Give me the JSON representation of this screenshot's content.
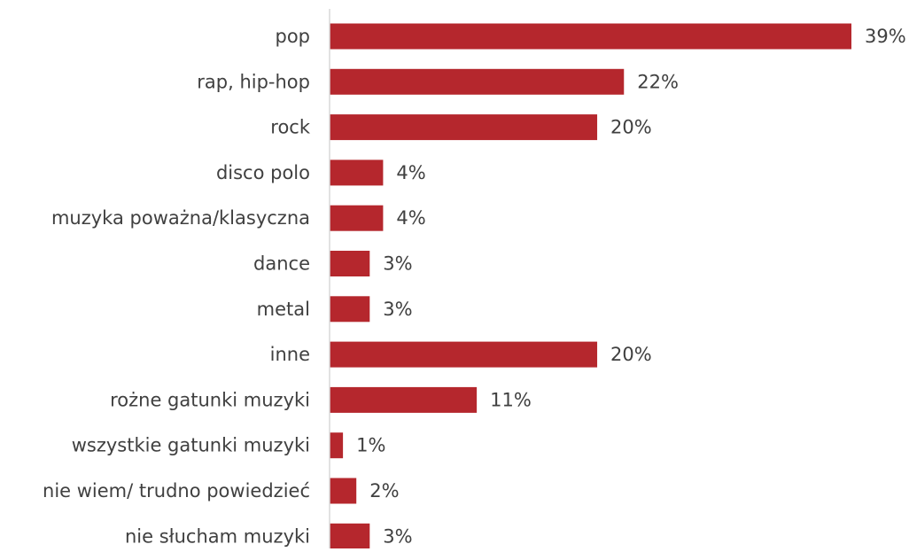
{
  "chart_data": {
    "type": "bar",
    "orientation": "horizontal",
    "title": "",
    "xlabel": "",
    "ylabel": "",
    "xlim": [
      0,
      39
    ],
    "grid": false,
    "legend": "none",
    "bar_color": "#b5272d",
    "axis_color": "#d9d9d9",
    "text_color": "#404040",
    "categories": [
      "pop",
      "rap, hip-hop",
      "rock",
      "disco polo",
      "muzyka poważna/klasyczna",
      "dance",
      "metal",
      "inne",
      "rożne gatunki muzyki",
      "wszystkie gatunki muzyki",
      "nie wiem/ trudno powiedzieć",
      "nie słucham muzyki"
    ],
    "values": [
      39,
      22,
      20,
      4,
      4,
      3,
      3,
      20,
      11,
      1,
      2,
      3
    ],
    "value_labels": [
      "39%",
      "22%",
      "20%",
      "4%",
      "4%",
      "3%",
      "3%",
      "20%",
      "11%",
      "1%",
      "2%",
      "3%"
    ]
  }
}
